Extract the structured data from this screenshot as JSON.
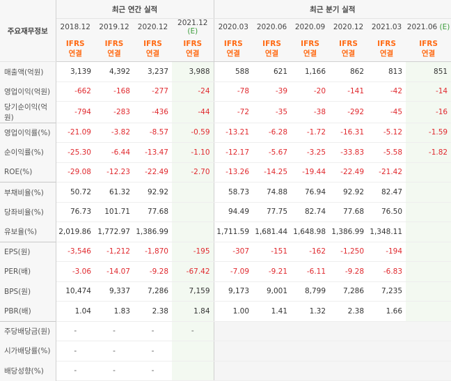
{
  "header": {
    "row_label": "주요재무정보",
    "annual_title": "최근 연간 실적",
    "quarter_title": "최근 분기 실적",
    "ifrs_label": "IFRS",
    "consol_label": "연결",
    "estimate_mark": "(E)"
  },
  "annual_periods": [
    "2018.12",
    "2019.12",
    "2020.12",
    "2021.12"
  ],
  "quarter_periods": [
    "2020.03",
    "2020.06",
    "2020.09",
    "2020.12",
    "2021.03",
    "2021.06"
  ],
  "rows": [
    {
      "label": "매출액(억원)",
      "values": [
        "3,139",
        "4,392",
        "3,237",
        "3,988",
        "588",
        "621",
        "1,166",
        "862",
        "813",
        "851"
      ]
    },
    {
      "label": "영업이익(억원)",
      "values": [
        "-662",
        "-168",
        "-277",
        "-24",
        "-78",
        "-39",
        "-20",
        "-141",
        "-42",
        "-14"
      ]
    },
    {
      "label": "당기순이익(억원)",
      "values": [
        "-794",
        "-283",
        "-436",
        "-44",
        "-72",
        "-35",
        "-38",
        "-292",
        "-45",
        "-16"
      ]
    },
    {
      "label": "영업이익률(%)",
      "values": [
        "-21.09",
        "-3.82",
        "-8.57",
        "-0.59",
        "-13.21",
        "-6.28",
        "-1.72",
        "-16.31",
        "-5.12",
        "-1.59"
      ]
    },
    {
      "label": "순이익률(%)",
      "values": [
        "-25.30",
        "-6.44",
        "-13.47",
        "-1.10",
        "-12.17",
        "-5.67",
        "-3.25",
        "-33.83",
        "-5.58",
        "-1.82"
      ]
    },
    {
      "label": "ROE(%)",
      "values": [
        "-29.08",
        "-12.23",
        "-22.49",
        "-2.70",
        "-13.26",
        "-14.25",
        "-19.44",
        "-22.49",
        "-21.42",
        ""
      ]
    },
    {
      "label": "부채비율(%)",
      "values": [
        "50.72",
        "61.32",
        "92.92",
        "",
        "58.73",
        "74.88",
        "76.94",
        "92.92",
        "82.47",
        ""
      ]
    },
    {
      "label": "당좌비율(%)",
      "values": [
        "76.73",
        "101.71",
        "77.68",
        "",
        "94.49",
        "77.75",
        "82.74",
        "77.68",
        "76.50",
        ""
      ]
    },
    {
      "label": "유보율(%)",
      "values": [
        "2,019.86",
        "1,772.97",
        "1,386.99",
        "",
        "1,711.59",
        "1,681.44",
        "1,648.98",
        "1,386.99",
        "1,348.11",
        ""
      ]
    },
    {
      "label": "EPS(원)",
      "values": [
        "-3,546",
        "-1,212",
        "-1,870",
        "-195",
        "-307",
        "-151",
        "-162",
        "-1,250",
        "-194",
        ""
      ]
    },
    {
      "label": "PER(배)",
      "values": [
        "-3.06",
        "-14.07",
        "-9.28",
        "-67.42",
        "-7.09",
        "-9.21",
        "-6.11",
        "-9.28",
        "-6.83",
        ""
      ]
    },
    {
      "label": "BPS(원)",
      "values": [
        "10,474",
        "9,337",
        "7,286",
        "7,159",
        "9,173",
        "9,001",
        "8,799",
        "7,286",
        "7,235",
        ""
      ]
    },
    {
      "label": "PBR(배)",
      "values": [
        "1.04",
        "1.83",
        "2.38",
        "1.84",
        "1.00",
        "1.41",
        "1.32",
        "2.38",
        "1.66",
        ""
      ]
    },
    {
      "label": "주당배당금(원)",
      "values": [
        "-",
        "-",
        "-",
        "-",
        "",
        "",
        "",
        "",
        "",
        ""
      ]
    },
    {
      "label": "시가배당률(%)",
      "values": [
        "-",
        "-",
        "-",
        "",
        "",
        "",
        "",
        "",
        "",
        ""
      ]
    },
    {
      "label": "배당성향(%)",
      "values": [
        "-",
        "-",
        "-",
        "",
        "",
        "",
        "",
        "",
        "",
        ""
      ]
    }
  ],
  "colors": {
    "negative": "#e0292e",
    "ifrs": "#ff6a13",
    "estimate_bg": "#f3f9f1",
    "estimate_mark": "#3a9b3a"
  }
}
